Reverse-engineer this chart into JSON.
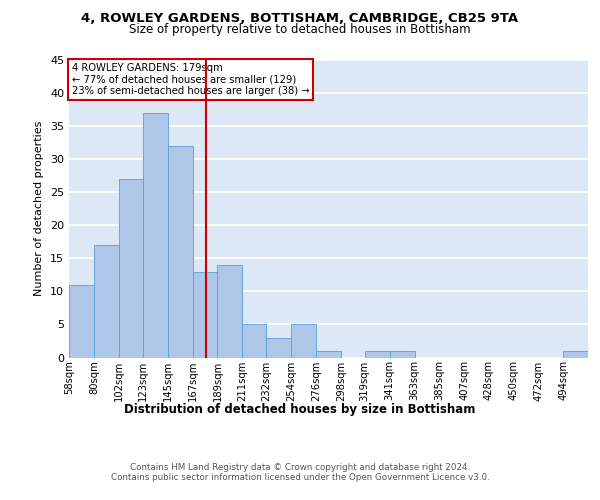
{
  "title1": "4, ROWLEY GARDENS, BOTTISHAM, CAMBRIDGE, CB25 9TA",
  "title2": "Size of property relative to detached houses in Bottisham",
  "xlabel": "Distribution of detached houses by size in Bottisham",
  "ylabel": "Number of detached properties",
  "bin_labels": [
    "58sqm",
    "80sqm",
    "102sqm",
    "123sqm",
    "145sqm",
    "167sqm",
    "189sqm",
    "211sqm",
    "232sqm",
    "254sqm",
    "276sqm",
    "298sqm",
    "319sqm",
    "341sqm",
    "363sqm",
    "385sqm",
    "407sqm",
    "428sqm",
    "450sqm",
    "472sqm",
    "494sqm"
  ],
  "bar_values": [
    11,
    17,
    27,
    37,
    32,
    13,
    14,
    5,
    3,
    5,
    1,
    0,
    1,
    1,
    0,
    0,
    0,
    0,
    0,
    0,
    1
  ],
  "bar_color": "#aec6e8",
  "bar_edge_color": "#5a9fd4",
  "vline_x": 179,
  "vline_color": "#cc0000",
  "annotation_text": "4 ROWLEY GARDENS: 179sqm\n← 77% of detached houses are smaller (129)\n23% of semi-detached houses are larger (38) →",
  "annotation_box_color": "#ffffff",
  "annotation_box_edge": "#cc0000",
  "ylim": [
    0,
    45
  ],
  "yticks": [
    0,
    5,
    10,
    15,
    20,
    25,
    30,
    35,
    40,
    45
  ],
  "background_color": "#dce8f5",
  "grid_color": "#ffffff",
  "footer": "Contains HM Land Registry data © Crown copyright and database right 2024.\nContains public sector information licensed under the Open Government Licence v3.0.",
  "bin_edges": [
    58,
    80,
    102,
    123,
    145,
    167,
    189,
    211,
    232,
    254,
    276,
    298,
    319,
    341,
    363,
    385,
    407,
    428,
    450,
    472,
    494,
    516
  ]
}
